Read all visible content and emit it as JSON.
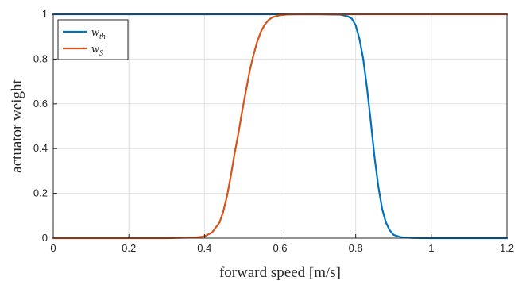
{
  "chart_data": {
    "type": "line",
    "xlabel": "forward speed [m/s]",
    "ylabel": "actuator weight",
    "xlim": [
      0,
      1.2
    ],
    "ylim": [
      0,
      1
    ],
    "xticks": [
      0,
      0.2,
      0.4,
      0.6,
      0.8,
      1,
      1.2
    ],
    "yticks": [
      0,
      0.2,
      0.4,
      0.6,
      0.8,
      1
    ],
    "xtick_labels": [
      "0",
      "0.2",
      "0.4",
      "0.6",
      "0.8",
      "1",
      "1.2"
    ],
    "ytick_labels": [
      "0",
      "0.2",
      "0.4",
      "0.6",
      "0.8",
      "1"
    ],
    "grid": true,
    "legend_location": "top-left",
    "series": [
      {
        "name": "w_th",
        "legend_main": "w",
        "legend_sub": "th",
        "color": "#0072BD",
        "x": [
          0,
          0.2,
          0.4,
          0.6,
          0.7,
          0.76,
          0.78,
          0.79,
          0.8,
          0.81,
          0.82,
          0.83,
          0.84,
          0.85,
          0.86,
          0.87,
          0.88,
          0.89,
          0.9,
          0.92,
          0.95,
          1.0,
          1.2
        ],
        "y": [
          1,
          1,
          1,
          1,
          1,
          0.998,
          0.99,
          0.98,
          0.95,
          0.89,
          0.8,
          0.67,
          0.52,
          0.36,
          0.23,
          0.13,
          0.07,
          0.035,
          0.015,
          0.004,
          0.001,
          0,
          0
        ]
      },
      {
        "name": "w_S",
        "legend_main": "w",
        "legend_sub": "S",
        "color": "#D95319",
        "x": [
          0,
          0.3,
          0.38,
          0.4,
          0.42,
          0.44,
          0.45,
          0.46,
          0.47,
          0.48,
          0.49,
          0.5,
          0.51,
          0.52,
          0.53,
          0.54,
          0.55,
          0.56,
          0.57,
          0.58,
          0.6,
          0.62,
          0.65,
          0.7,
          0.8,
          1.0,
          1.2
        ],
        "y": [
          0,
          0,
          0.003,
          0.008,
          0.025,
          0.07,
          0.12,
          0.19,
          0.28,
          0.38,
          0.47,
          0.57,
          0.66,
          0.75,
          0.82,
          0.88,
          0.925,
          0.955,
          0.975,
          0.987,
          0.996,
          0.999,
          1,
          1,
          1,
          1,
          1
        ]
      }
    ]
  }
}
